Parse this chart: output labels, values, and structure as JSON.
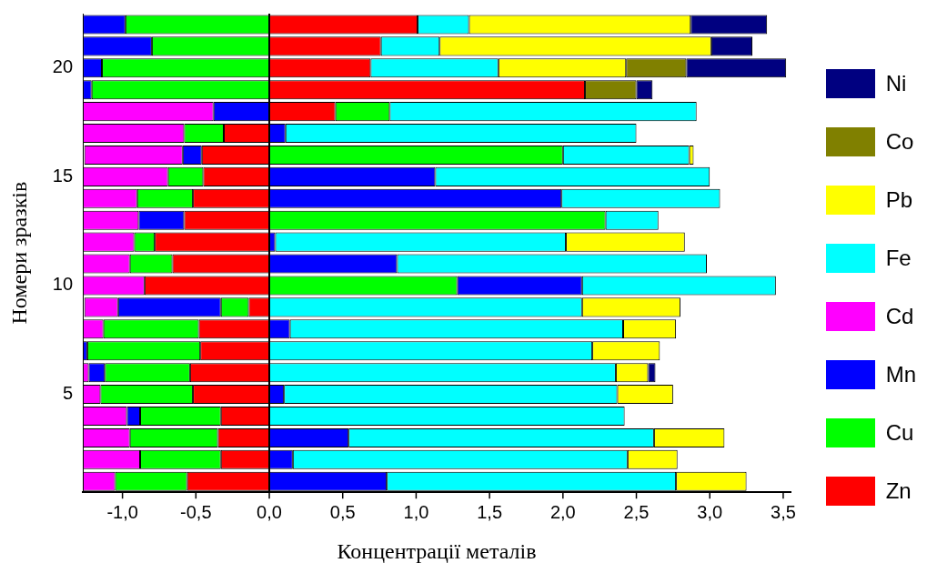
{
  "chart_data": {
    "type": "bar",
    "orientation": "horizontal",
    "stacked": true,
    "xlabel": "Концентрації металів",
    "ylabel": "Номери зразків",
    "categories": [
      null,
      null,
      "20",
      null,
      null,
      null,
      null,
      "15",
      null,
      null,
      null,
      null,
      "10",
      null,
      null,
      null,
      null,
      "5",
      null,
      null,
      null,
      null
    ],
    "xlim": [
      -1.27,
      3.55
    ],
    "xticks": [
      {
        "value": -1,
        "label": "-1,0"
      },
      {
        "value": -0.5,
        "label": "-0,5"
      },
      {
        "value": 0,
        "label": "0,0"
      },
      {
        "value": 0.5,
        "label": "0,5"
      },
      {
        "value": 1,
        "label": "1,0"
      },
      {
        "value": 1.5,
        "label": "1,5"
      },
      {
        "value": 2,
        "label": "2,0"
      },
      {
        "value": 2.5,
        "label": "2,5"
      },
      {
        "value": 3,
        "label": "3,0"
      },
      {
        "value": 3.5,
        "label": "3,5"
      }
    ],
    "legend": "right",
    "grid": false,
    "ref_lines": [
      {
        "axis": "x",
        "value": 0,
        "color": "#000000"
      }
    ],
    "series": [
      {
        "name": "Zn",
        "color": "#ff0000",
        "values": [
          1.01,
          0.76,
          0.69,
          2.15,
          0.45,
          -0.31,
          -0.46,
          -0.45,
          -0.52,
          -0.58,
          -0.78,
          -0.66,
          -0.85,
          -0.14,
          -0.48,
          -0.47,
          -0.54,
          -0.52,
          -0.33,
          -0.35,
          -0.33,
          -0.56
        ]
      },
      {
        "name": "Cu",
        "color": "#00ff00",
        "values": [
          -0.98,
          -0.8,
          -1.14,
          -1.21,
          0.37,
          -0.27,
          2.0,
          -0.24,
          -0.38,
          2.29,
          -0.14,
          -0.29,
          1.28,
          -0.19,
          -0.65,
          -0.77,
          -0.58,
          -0.63,
          -0.55,
          -0.6,
          -0.55,
          -0.49
        ]
      },
      {
        "name": "Mn",
        "color": "#0000ff",
        "values": [
          -0.29,
          -0.47,
          -0.13,
          -0.06,
          -0.38,
          0.11,
          -0.13,
          1.13,
          1.99,
          -0.31,
          0.04,
          0.87,
          0.85,
          -0.7,
          0.14,
          -0.03,
          -0.11,
          0.1,
          -0.09,
          0.54,
          0.16,
          0.8
        ]
      },
      {
        "name": "Cd",
        "color": "#ff00ff",
        "values": [
          null,
          null,
          null,
          null,
          -0.89,
          -0.69,
          -0.67,
          -0.58,
          -0.37,
          -0.38,
          -0.35,
          -0.32,
          -0.42,
          -0.23,
          -0.14,
          null,
          -0.04,
          -0.12,
          -0.3,
          -0.32,
          -0.39,
          -0.22
        ]
      },
      {
        "name": "Fe",
        "color": "#00ffff",
        "values": [
          0.35,
          0.4,
          0.87,
          null,
          2.09,
          2.39,
          0.86,
          1.87,
          1.08,
          0.36,
          1.98,
          2.11,
          1.32,
          2.13,
          2.27,
          2.2,
          2.36,
          2.27,
          2.42,
          2.08,
          2.28,
          1.97
        ]
      },
      {
        "name": "Pb",
        "color": "#ffff00",
        "values": [
          1.51,
          1.85,
          0.87,
          null,
          null,
          null,
          0.03,
          null,
          null,
          null,
          0.81,
          null,
          null,
          0.67,
          0.36,
          0.46,
          0.22,
          0.38,
          null,
          0.48,
          0.34,
          0.48
        ]
      },
      {
        "name": "Co",
        "color": "#808000",
        "values": [
          null,
          null,
          0.41,
          0.35,
          null,
          null,
          null,
          null,
          null,
          null,
          null,
          null,
          null,
          null,
          null,
          null,
          null,
          null,
          null,
          null,
          null,
          null
        ]
      },
      {
        "name": "Ni",
        "color": "#000080",
        "values": [
          0.52,
          0.28,
          0.68,
          0.11,
          null,
          null,
          null,
          null,
          null,
          null,
          null,
          null,
          null,
          null,
          null,
          null,
          0.05,
          null,
          null,
          null,
          null,
          null
        ]
      }
    ]
  }
}
